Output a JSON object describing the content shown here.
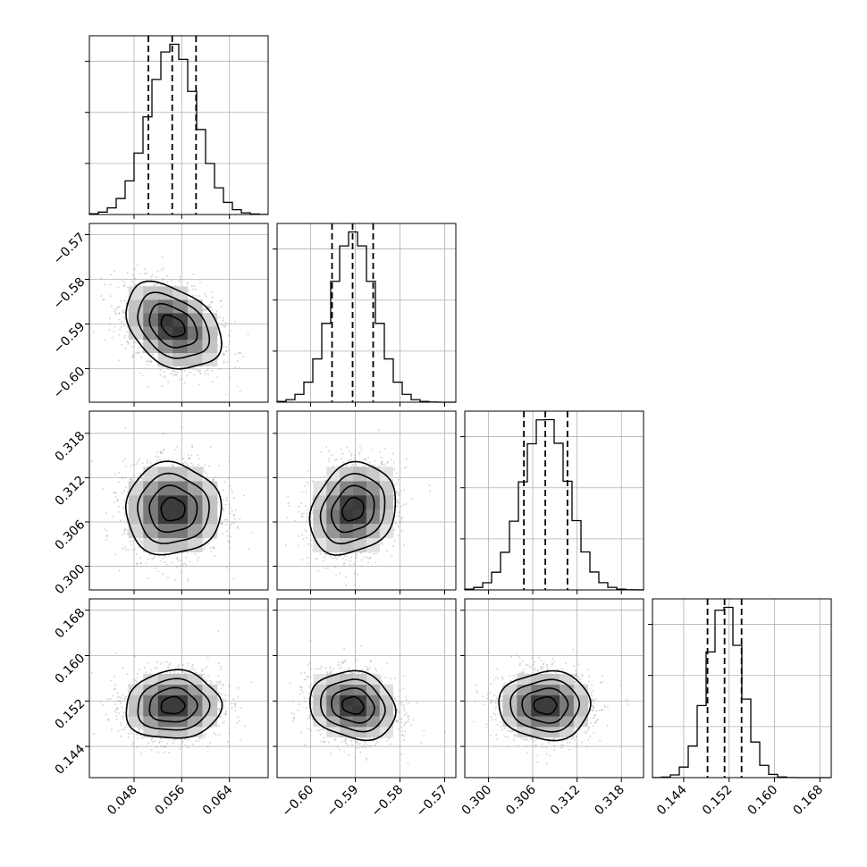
{
  "chart_data": {
    "type": "corner",
    "title": "",
    "grid": true,
    "parameters": [
      {
        "range": [
          0.0405,
          0.0705
        ],
        "ticks": [
          0.048,
          0.056,
          0.064
        ],
        "tick_labels": [
          "0.048",
          "0.056",
          "0.064"
        ],
        "mean": 0.0545,
        "std": 0.004,
        "quantiles": [
          0.0504,
          0.0544,
          0.0584
        ]
      },
      {
        "range": [
          -0.6075,
          -0.5675
        ],
        "ticks": [
          -0.6,
          -0.59,
          -0.58,
          -0.57
        ],
        "tick_labels": [
          "−0.60",
          "−0.59",
          "−0.58",
          "−0.57"
        ],
        "mean": -0.5905,
        "std": 0.0048,
        "quantiles": [
          -0.5952,
          -0.5906,
          -0.586
        ]
      },
      {
        "range": [
          0.2968,
          0.321
        ],
        "ticks": [
          0.3,
          0.306,
          0.312,
          0.318
        ],
        "tick_labels": [
          "0.300",
          "0.306",
          "0.312",
          "0.318"
        ],
        "mean": 0.3077,
        "std": 0.0031,
        "quantiles": [
          0.3048,
          0.3077,
          0.3107
        ]
      },
      {
        "range": [
          0.1385,
          0.17
        ],
        "ticks": [
          0.144,
          0.152,
          0.16,
          0.168
        ],
        "tick_labels": [
          "0.144",
          "0.152",
          "0.160",
          "0.168"
        ],
        "mean": 0.1512,
        "std": 0.003,
        "quantiles": [
          0.1482,
          0.1512,
          0.1542
        ]
      }
    ],
    "correlations": [
      [
        1.0,
        -0.35,
        0.0,
        0.05
      ],
      [
        -0.35,
        1.0,
        0.2,
        -0.15
      ],
      [
        0.0,
        0.2,
        1.0,
        0.0
      ],
      [
        0.05,
        -0.15,
        0.0,
        1.0
      ]
    ],
    "contour_levels_sigma": [
      0.5,
      1.0,
      1.5,
      2.0
    ],
    "histogram_bins": 20
  }
}
